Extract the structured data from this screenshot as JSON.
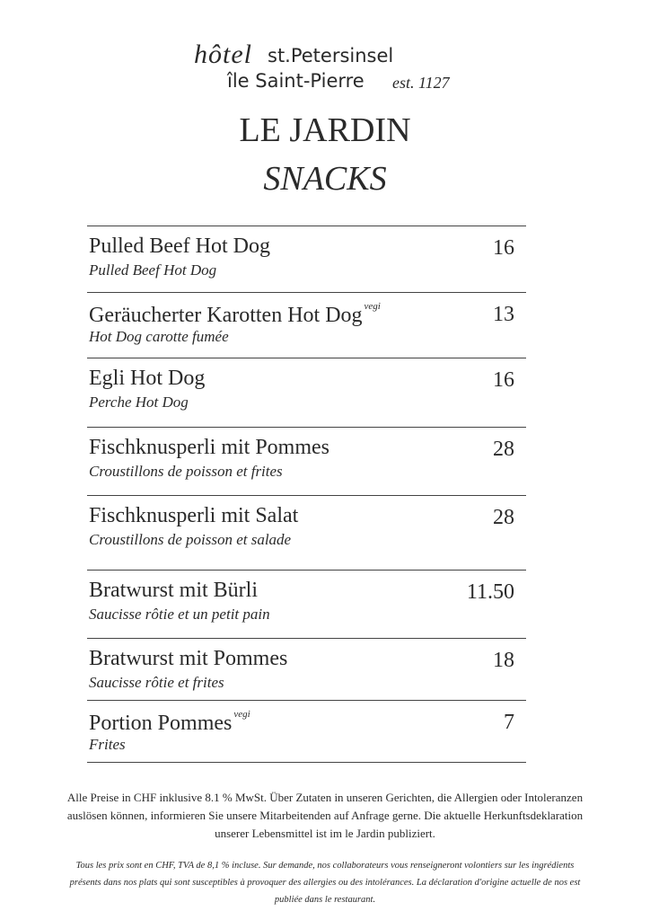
{
  "header": {
    "logo_script": "hôtel",
    "logo_name": "st.Petersinsel",
    "logo_name_fr": "île Saint-Pierre",
    "logo_est": "est. 1127",
    "title": "LE JARDIN",
    "subtitle": "SNACKS"
  },
  "menu": {
    "items": [
      {
        "name": "Pulled Beef Hot Dog",
        "translation": "Pulled Beef Hot Dog",
        "price": "16"
      },
      {
        "name": "Geräucherter Karotten Hot Dog",
        "tag": "vegi",
        "translation": "Hot Dog carotte fumée",
        "price": "13"
      },
      {
        "name": "Egli Hot Dog",
        "translation": "Perche Hot Dog",
        "price": "16"
      },
      {
        "name": "Fischknusperli mit Pommes",
        "translation": "Croustillons de poisson et frites",
        "price": "28"
      },
      {
        "name": "Fischknusperli mit Salat",
        "translation": "Croustillons de poisson et salade",
        "price": "28"
      },
      {
        "name": "Bratwurst mit Bürli",
        "translation": "Saucisse rôtie et un petit pain",
        "price": "11.50"
      },
      {
        "name": "Bratwurst mit Pommes",
        "translation": "Saucisse rôtie et frites",
        "price": "18"
      },
      {
        "name": "Portion Pommes",
        "tag": "vegi",
        "translation": "Frites",
        "price": "7"
      }
    ]
  },
  "footer": {
    "note_de": "Alle Preise in CHF inklusive 8.1 % MwSt. Über Zutaten in unseren Gerichten, die Allergien oder Intoleranzen auslösen können, informieren Sie unsere Mitarbeitenden auf Anfrage gerne. Die aktuelle Herkunftsdeklaration unserer Lebensmittel ist im le Jardin publiziert.",
    "note_fr": "Tous les prix sont en CHF, TVA de 8,1 % incluse. Sur demande, nos collaborateurs vous renseigneront volontiers sur les ingrédients présents dans nos plats qui sont susceptibles à provoquer des allergies ou des intolérances. La déclaration d'origine actuelle de nos est publiée dans le restaurant."
  }
}
